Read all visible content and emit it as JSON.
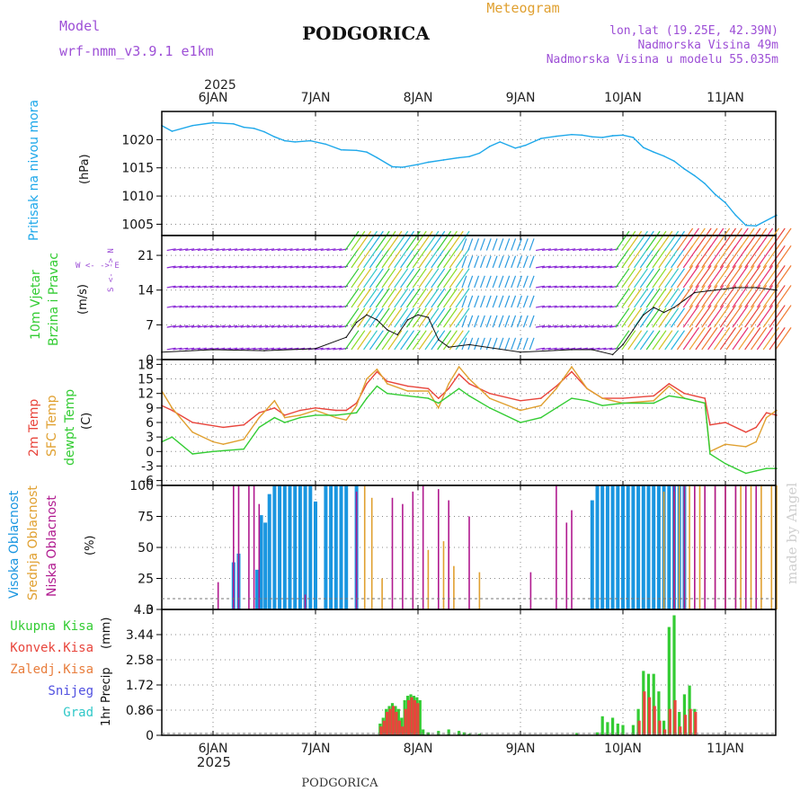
{
  "header": {
    "model_label": "Model",
    "model_name": "wrf-nmm_v3.9.1  e1km",
    "station": "PODGORICA",
    "product": "Meteogram",
    "lonlat": "lon,lat (19.25E, 42.39N)",
    "altitude": "Nadmorska Visina 49m",
    "model_altitude": "Nadmorska Visina u modelu 55.035m",
    "footer_station": "PODGORICA",
    "watermark": "made by Angel"
  },
  "time_axis": {
    "year": "2025",
    "days": [
      "6JAN",
      "7JAN",
      "8JAN",
      "9JAN",
      "10JAN",
      "11JAN"
    ],
    "start": "2025-01-05T12:00",
    "end": "2025-01-11T12:00"
  },
  "colors": {
    "pressure": "#1ea8ea",
    "temp2m": "#e8453c",
    "sfc_temp": "#e0a030",
    "dewpoint": "#33cc33",
    "high_cloud": "#1a96e0",
    "mid_cloud": "#e0a030",
    "low_cloud": "#b0198f",
    "total_precip": "#33cc33",
    "conv_precip": "#e8453c",
    "snow": "#5050e0",
    "hail": "#30c8c8",
    "wind_label": "#33cc33",
    "wind_dir_label": "#9d4fd6"
  },
  "panels": {
    "pressure": {
      "label": "Pritisak na nivou mora",
      "unit": "(hPa)"
    },
    "wind": {
      "label1": "10m Vjetar",
      "label2": "Brzina i Pravac",
      "unit": "(m/s)",
      "compass": "W <- -> E",
      "compass_ns": "S <- -> N"
    },
    "temp": {
      "label1": "2m Temp",
      "label2": "SFC Temp",
      "label3": "dewpt Temp",
      "unit": "(C)"
    },
    "cloud": {
      "label1": "Visoka Oblacnost",
      "label2": "Srednja Oblacnost",
      "label3": "Niska Oblacnost",
      "unit": "(%)"
    },
    "precip": {
      "label": "1hr Precip",
      "unit": "(mm)",
      "legend": [
        "Ukupna Kisa",
        "Konvek.Kisa",
        "Zaledj.Kisa",
        "Snijeg",
        "Grad"
      ]
    }
  },
  "chart_data": [
    {
      "type": "line",
      "title": "Pritisak na nivou mora",
      "ylabel": "(hPa)",
      "ylim": [
        1003,
        1025
      ],
      "yticks": [
        1005,
        1010,
        1015,
        1020
      ],
      "series": [
        {
          "name": "Pritisak na nivou mora",
          "x": [
            0,
            0.1,
            0.3,
            0.5,
            0.7,
            0.8,
            0.9,
            1.0,
            1.1,
            1.2,
            1.3,
            1.45,
            1.6,
            1.75,
            1.9,
            2.0,
            2.1,
            2.25,
            2.35,
            2.5,
            2.6,
            2.75,
            2.9,
            3.0,
            3.1,
            3.2,
            3.3,
            3.45,
            3.55,
            3.7,
            3.85,
            4.0,
            4.1,
            4.2,
            4.3,
            4.4,
            4.5,
            4.6,
            4.65,
            4.7,
            4.8,
            4.9,
            5.0,
            5.1,
            5.2,
            5.3,
            5.4,
            5.5,
            5.6,
            5.7,
            5.8,
            6.0
          ],
          "values": [
            1022.5,
            1021.5,
            1022.5,
            1023.0,
            1022.8,
            1022.2,
            1022.0,
            1021.4,
            1020.5,
            1019.8,
            1019.6,
            1019.8,
            1019.2,
            1018.2,
            1018.1,
            1017.8,
            1016.8,
            1015.2,
            1015.1,
            1015.6,
            1016.0,
            1016.4,
            1016.8,
            1017.0,
            1017.6,
            1018.8,
            1019.6,
            1018.5,
            1019.0,
            1020.2,
            1020.6,
            1020.9,
            1020.8,
            1020.5,
            1020.4,
            1020.7,
            1020.8,
            1020.4,
            1019.5,
            1018.6,
            1017.8,
            1017.1,
            1016.2,
            1014.8,
            1013.6,
            1012.2,
            1010.3,
            1008.8,
            1006.6,
            1004.8,
            1004.7,
            1006.6
          ]
        }
      ]
    },
    {
      "type": "line",
      "title": "10m Vjetar Brzina i Pravac",
      "ylabel": "(m/s)",
      "ylim": [
        0,
        25
      ],
      "yticks": [
        0,
        7,
        14,
        21
      ],
      "series": [
        {
          "name": "10m Vjetar",
          "x": [
            0,
            0.5,
            1.0,
            1.5,
            1.8,
            1.9,
            2.0,
            2.1,
            2.2,
            2.3,
            2.4,
            2.5,
            2.6,
            2.7,
            2.8,
            3.0,
            3.5,
            4.0,
            4.2,
            4.4,
            4.5,
            4.6,
            4.7,
            4.8,
            4.9,
            5.0,
            5.1,
            5.2,
            5.4,
            5.6,
            5.8,
            6.0
          ],
          "values": [
            1.5,
            2.0,
            1.8,
            2.2,
            4.5,
            7.5,
            9.0,
            8.0,
            6.0,
            5.0,
            8.0,
            9.0,
            8.5,
            4.0,
            2.5,
            3.0,
            1.5,
            2.0,
            2.0,
            1.0,
            3.0,
            6.0,
            9.0,
            10.5,
            9.5,
            10.5,
            12.0,
            13.5,
            14.0,
            14.5,
            14.5,
            14.0
          ]
        }
      ]
    },
    {
      "type": "line",
      "title": "2m Temp / SFC Temp / dewpt Temp",
      "ylabel": "(C)",
      "ylim": [
        -7,
        19
      ],
      "yticks": [
        -6,
        -3,
        0,
        3,
        6,
        9,
        12,
        15,
        18
      ],
      "series": [
        {
          "name": "2m Temp",
          "x": [
            0,
            0.1,
            0.3,
            0.6,
            0.8,
            0.95,
            1.1,
            1.2,
            1.35,
            1.5,
            1.7,
            1.8,
            1.9,
            2.0,
            2.1,
            2.2,
            2.4,
            2.6,
            2.7,
            2.8,
            2.9,
            3.0,
            3.2,
            3.5,
            3.7,
            3.85,
            4.0,
            4.15,
            4.3,
            4.5,
            4.8,
            4.95,
            5.1,
            5.2,
            5.3,
            5.35,
            5.5,
            5.7,
            5.8,
            5.9,
            6.0
          ],
          "values": [
            9.5,
            8.5,
            6.0,
            5.0,
            5.5,
            8.0,
            9.0,
            7.5,
            8.5,
            9.0,
            8.5,
            8.5,
            10.0,
            14.0,
            16.5,
            14.5,
            13.5,
            13.0,
            11.0,
            13.0,
            16.0,
            14.0,
            12.0,
            10.5,
            11.0,
            13.5,
            16.5,
            13.0,
            11.0,
            11.0,
            11.5,
            14.0,
            12.0,
            11.5,
            11.0,
            5.5,
            6.0,
            4.0,
            5.0,
            8.0,
            7.5
          ]
        },
        {
          "name": "SFC Temp",
          "x": [
            0,
            0.1,
            0.3,
            0.5,
            0.6,
            0.8,
            0.95,
            1.1,
            1.2,
            1.35,
            1.5,
            1.7,
            1.8,
            1.9,
            2.0,
            2.1,
            2.2,
            2.4,
            2.6,
            2.7,
            2.8,
            2.9,
            3.0,
            3.2,
            3.5,
            3.7,
            3.85,
            4.0,
            4.15,
            4.3,
            4.5,
            4.8,
            4.95,
            5.1,
            5.2,
            5.3,
            5.35,
            5.5,
            5.7,
            5.8,
            5.9,
            6.0
          ],
          "values": [
            12.5,
            9.0,
            4.0,
            2.0,
            1.5,
            2.5,
            7.0,
            10.5,
            7.0,
            7.5,
            8.5,
            7.0,
            6.5,
            9.5,
            15.0,
            17.0,
            14.0,
            12.5,
            12.5,
            9.0,
            14.0,
            17.5,
            15.0,
            11.0,
            8.5,
            9.5,
            13.0,
            17.5,
            13.0,
            11.0,
            10.0,
            10.5,
            13.5,
            11.0,
            10.5,
            10.0,
            0.0,
            1.5,
            1.0,
            2.0,
            7.0,
            8.5
          ]
        },
        {
          "name": "dewpt Temp",
          "x": [
            0,
            0.1,
            0.3,
            0.5,
            0.8,
            0.95,
            1.1,
            1.2,
            1.35,
            1.5,
            1.7,
            1.9,
            2.0,
            2.1,
            2.2,
            2.4,
            2.6,
            2.7,
            2.8,
            2.9,
            3.0,
            3.2,
            3.5,
            3.7,
            3.85,
            4.0,
            4.15,
            4.3,
            4.5,
            4.8,
            4.95,
            5.1,
            5.2,
            5.3,
            5.35,
            5.5,
            5.6,
            5.7,
            5.8,
            5.9,
            6.0
          ],
          "values": [
            2.0,
            3.0,
            -0.5,
            0.0,
            0.5,
            5.0,
            7.0,
            6.0,
            7.0,
            7.5,
            7.5,
            8.0,
            11.0,
            13.5,
            12.0,
            11.5,
            11.0,
            10.0,
            11.5,
            13.0,
            11.5,
            9.0,
            6.0,
            7.0,
            9.0,
            11.0,
            10.5,
            9.5,
            10.0,
            10.0,
            11.5,
            11.0,
            10.5,
            10.0,
            -0.5,
            -2.5,
            -3.5,
            -4.5,
            -4.0,
            -3.5,
            -3.5
          ]
        }
      ]
    },
    {
      "type": "bar",
      "title": "Visoka / Srednja / Niska Oblacnost",
      "ylabel": "(%)",
      "ylim": [
        0,
        100
      ],
      "yticks": [
        0,
        25,
        50,
        75,
        100
      ],
      "series": [
        {
          "name": "Visoka Oblacnost",
          "x": [
            0.7,
            0.75,
            0.93,
            0.97,
            1.01,
            1.05,
            1.1,
            1.15,
            1.2,
            1.25,
            1.3,
            1.35,
            1.4,
            1.45,
            1.5,
            1.6,
            1.65,
            1.7,
            1.75,
            1.8,
            1.9,
            4.2,
            4.25,
            4.3,
            4.35,
            4.4,
            4.45,
            4.5,
            4.55,
            4.6,
            4.65,
            4.7,
            4.75,
            4.8,
            4.85,
            4.9,
            4.95,
            5.0,
            5.05,
            5.1
          ],
          "values": [
            38,
            45,
            32,
            76,
            70,
            93,
            100,
            100,
            100,
            100,
            100,
            100,
            100,
            100,
            87,
            100,
            100,
            100,
            100,
            100,
            100,
            88,
            100,
            100,
            100,
            100,
            100,
            100,
            100,
            100,
            100,
            100,
            100,
            100,
            100,
            100,
            100,
            100,
            100,
            100
          ]
        },
        {
          "name": "Srednja Oblacnost",
          "x": [
            1.98,
            2.05,
            2.15,
            2.45,
            2.6,
            2.75,
            2.85,
            3.1,
            4.9,
            5.0,
            5.05,
            5.1,
            5.15,
            5.2,
            5.25,
            5.3,
            5.4,
            5.5,
            5.6,
            5.65,
            5.75,
            5.85,
            5.95,
            6.0
          ],
          "values": [
            100,
            90,
            25,
            82,
            48,
            55,
            35,
            30,
            95,
            95,
            100,
            100,
            100,
            100,
            100,
            100,
            100,
            100,
            100,
            100,
            100,
            100,
            100,
            100
          ]
        },
        {
          "name": "Niska Oblacnost",
          "x": [
            0.55,
            0.7,
            0.75,
            0.85,
            0.9,
            0.95,
            1.4,
            1.9,
            2.25,
            2.35,
            2.45,
            2.55,
            2.7,
            2.8,
            3.0,
            3.6,
            3.85,
            3.95,
            4.0,
            5.0,
            5.1,
            5.2,
            5.3,
            5.4,
            5.5,
            5.6,
            5.7,
            5.8
          ],
          "values": [
            22,
            100,
            100,
            100,
            100,
            85,
            12,
            95,
            90,
            85,
            95,
            100,
            97,
            88,
            75,
            30,
            100,
            70,
            80,
            100,
            100,
            100,
            100,
            100,
            100,
            100,
            100,
            100
          ]
        }
      ]
    },
    {
      "type": "bar",
      "title": "1hr Precip",
      "ylabel": "(mm)",
      "ylim": [
        0,
        4.3
      ],
      "yticks": [
        0,
        0.86,
        1.72,
        2.58,
        3.44,
        4.3
      ],
      "series": [
        {
          "name": "Ukupna Kisa",
          "x": [
            2.13,
            2.16,
            2.19,
            2.22,
            2.25,
            2.28,
            2.31,
            2.34,
            2.37,
            2.4,
            2.43,
            2.46,
            2.49,
            2.52,
            2.55,
            2.6,
            2.7,
            2.8,
            2.9,
            2.95,
            3.0,
            3.1,
            4.05,
            4.25,
            4.3,
            4.35,
            4.4,
            4.45,
            4.5,
            4.6,
            4.65,
            4.7,
            4.75,
            4.8,
            4.85,
            4.9,
            4.95,
            5.0,
            5.05,
            5.1,
            5.15,
            5.2
          ],
          "values": [
            0.4,
            0.6,
            0.9,
            1.0,
            1.1,
            1.0,
            0.9,
            0.6,
            1.2,
            1.35,
            1.4,
            1.35,
            1.3,
            1.2,
            0.2,
            0.1,
            0.15,
            0.2,
            0.15,
            0.1,
            0.05,
            0.05,
            0.08,
            0.1,
            0.65,
            0.45,
            0.6,
            0.4,
            0.35,
            0.35,
            0.9,
            2.2,
            2.1,
            2.1,
            1.5,
            0.5,
            3.7,
            4.1,
            0.8,
            1.4,
            1.7,
            0.9
          ]
        },
        {
          "name": "Konvek.Kisa",
          "x": [
            2.13,
            2.16,
            2.19,
            2.22,
            2.25,
            2.28,
            2.31,
            2.34,
            2.37,
            2.4,
            2.43,
            2.46,
            2.49,
            4.65,
            4.7,
            4.75,
            4.8,
            4.85,
            4.9,
            4.95,
            5.0,
            5.05,
            5.1,
            5.15,
            5.2
          ],
          "values": [
            0.3,
            0.5,
            0.8,
            0.9,
            1.0,
            0.8,
            0.5,
            0.3,
            0.9,
            1.2,
            1.3,
            1.2,
            1.1,
            0.5,
            1.5,
            1.3,
            1.0,
            0.5,
            0.2,
            0.9,
            1.2,
            0.3,
            0.7,
            0.9,
            0.8
          ]
        }
      ]
    }
  ]
}
